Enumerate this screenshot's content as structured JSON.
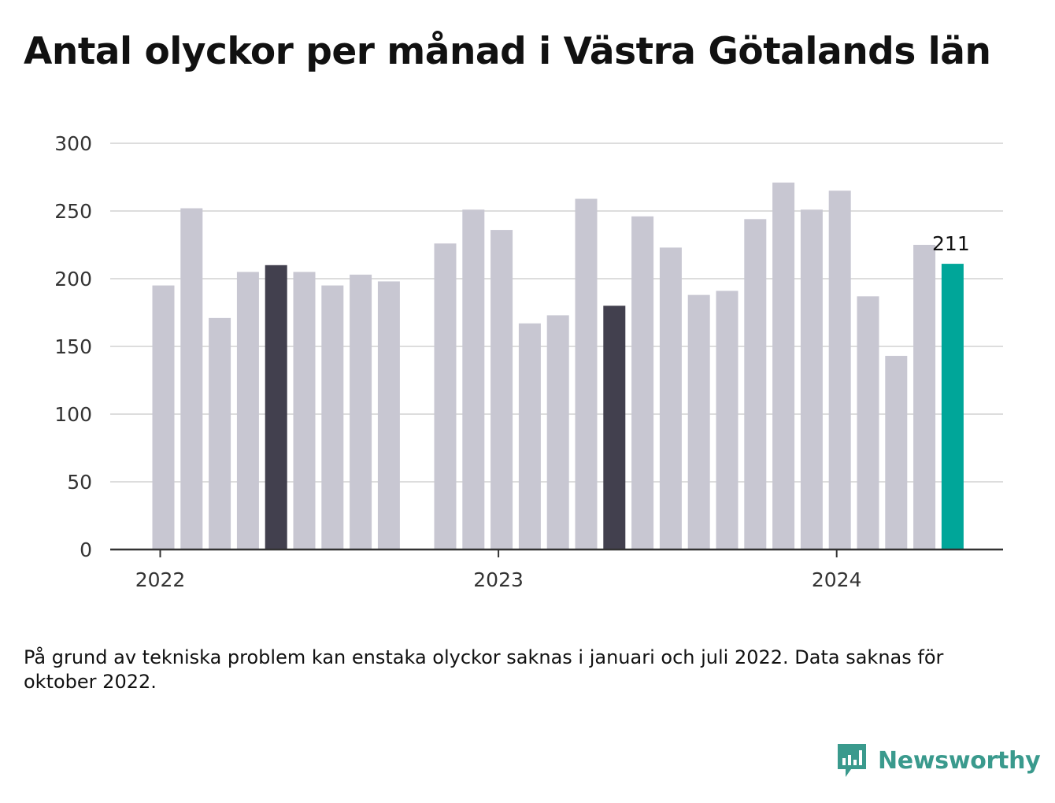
{
  "title": "Antal olyckor per månad i Västra Götalands län",
  "footnote": "På grund av tekniska problem kan enstaka olyckor saknas i januari och juli 2022. Data saknas för oktober 2022.",
  "brand": "Newsworthy",
  "colors": {
    "bar": "#c8c7d2",
    "highlight": "#42404e",
    "latest": "#00a699",
    "grid": "#dddddd",
    "axis": "#333333",
    "brand": "#3a9a8d"
  },
  "chart_data": {
    "type": "bar",
    "title": "Antal olyckor per månad i Västra Götalands län",
    "xlabel": "",
    "ylabel": "",
    "ylim": [
      0,
      300
    ],
    "yticks": [
      0,
      50,
      100,
      150,
      200,
      250,
      300
    ],
    "xtick_labels": [
      {
        "label": "2022",
        "category": "2022-01"
      },
      {
        "label": "2023",
        "category": "2023-01"
      },
      {
        "label": "2024",
        "category": "2024-01"
      }
    ],
    "grid": true,
    "categories": [
      "2022-01",
      "2022-02",
      "2022-03",
      "2022-04",
      "2022-05",
      "2022-06",
      "2022-07",
      "2022-08",
      "2022-09",
      "2022-10",
      "2022-11",
      "2022-12",
      "2023-01",
      "2023-02",
      "2023-03",
      "2023-04",
      "2023-05",
      "2023-06",
      "2023-07",
      "2023-08",
      "2023-09",
      "2023-10",
      "2023-11",
      "2023-12",
      "2024-01",
      "2024-02",
      "2024-03",
      "2024-04",
      "2024-05"
    ],
    "values": [
      195,
      252,
      171,
      205,
      210,
      205,
      195,
      203,
      198,
      null,
      226,
      251,
      236,
      167,
      173,
      259,
      180,
      246,
      223,
      188,
      191,
      244,
      271,
      251,
      265,
      187,
      143,
      225,
      211
    ],
    "highlighted": [
      "2022-05",
      "2023-05"
    ],
    "latest": "2024-05",
    "annotations": [
      {
        "category": "2024-05",
        "text": "211"
      }
    ]
  }
}
